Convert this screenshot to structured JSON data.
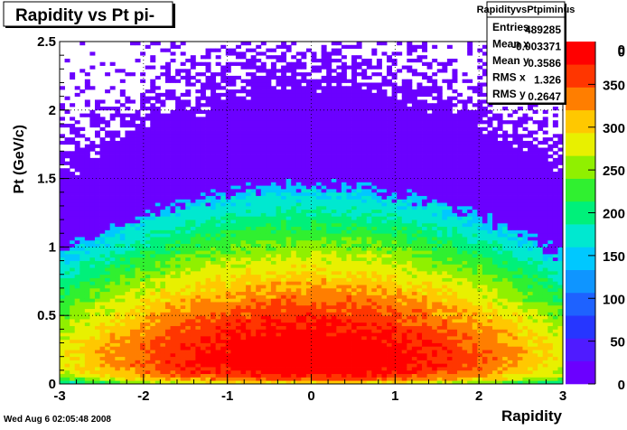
{
  "chart_data": {
    "type": "heatmap",
    "title": "Rapidity vs Pt pi-",
    "xlabel": "Rapidity",
    "ylabel": "Pt (GeV/c)",
    "xlim": [
      -3,
      3
    ],
    "ylim": [
      0,
      2.5
    ],
    "x_ticks": [
      "-3",
      "-2",
      "-1",
      "0",
      "1",
      "2",
      "3"
    ],
    "y_ticks": [
      "0",
      "0.5",
      "1",
      "1.5",
      "2",
      "2.5"
    ],
    "grid": true,
    "colorbar": {
      "min": 0,
      "max": 400,
      "tick_labels": [
        "0",
        "50",
        "100",
        "150",
        "200",
        "250",
        "300",
        "350"
      ],
      "visible_upper_fragments": [
        "0",
        "0"
      ]
    },
    "distribution": {
      "description_free_params": true,
      "peak_count": 400,
      "pt_peak": 0.2,
      "rapidity_center": 0.0,
      "rapidity_sigma": 1.326,
      "bins_x": 100,
      "bins_y": 100
    }
  },
  "stats_box": {
    "name": "RapidityvsPtpiminus",
    "rows": [
      {
        "label": "Entries",
        "value": "489285"
      },
      {
        "label": "Mean x",
        "value": "-0.003371"
      },
      {
        "label": "Mean y",
        "value": "0.3586"
      },
      {
        "label": "RMS x",
        "value": "1.326"
      },
      {
        "label": "RMS y",
        "value": "0.2647"
      }
    ]
  },
  "footer": {
    "timestamp": "Wed Aug  6 02:05:48 2008"
  },
  "palette": [
    "#6b00ff",
    "#4f1bff",
    "#2636ff",
    "#1e62ff",
    "#0f95ff",
    "#00c8ff",
    "#00e8d0",
    "#00f07a",
    "#30f030",
    "#90f000",
    "#e8f000",
    "#ffc800",
    "#ff7e00",
    "#ff3600",
    "#ff0000"
  ]
}
